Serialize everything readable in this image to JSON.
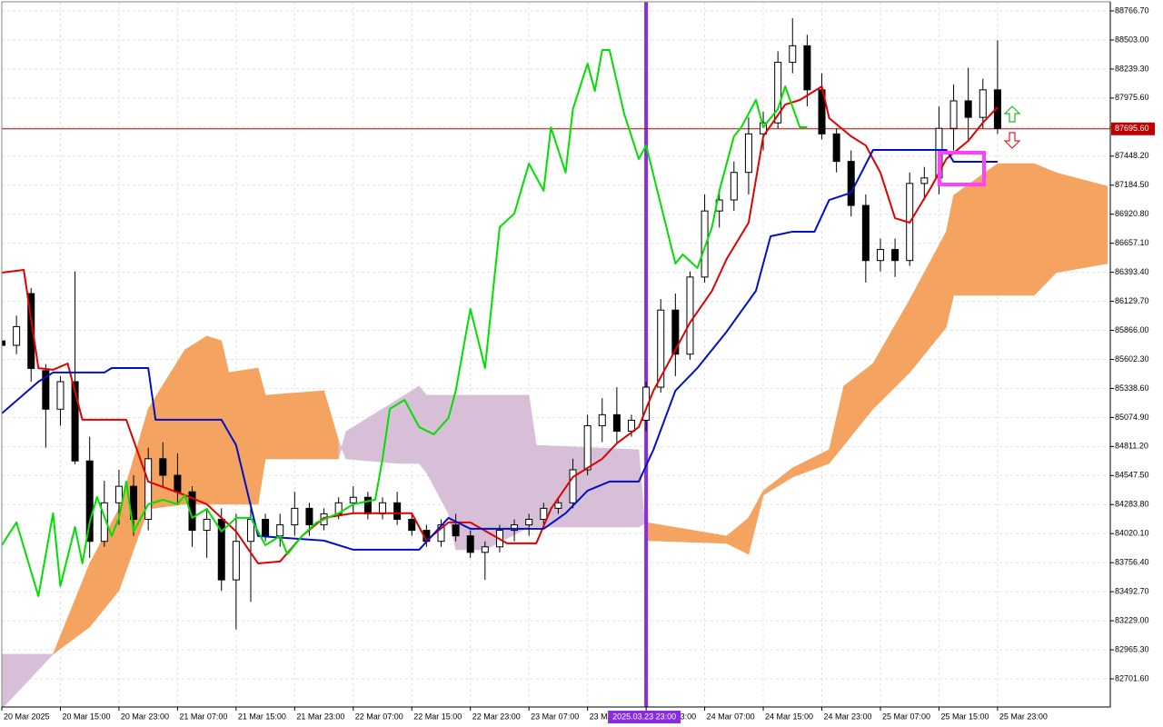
{
  "chart_data": {
    "type": "candlestick",
    "x": [
      0,
      2,
      4,
      6,
      8,
      10,
      12,
      14,
      16,
      18,
      20,
      22,
      24,
      26,
      28,
      30,
      32,
      34,
      36,
      38,
      40,
      42,
      44,
      46,
      48,
      50,
      52,
      54,
      56,
      58,
      60,
      62,
      64,
      66,
      68,
      70,
      72,
      74,
      76,
      78,
      80,
      82,
      84,
      86,
      88,
      90,
      92,
      94,
      96,
      98,
      100,
      102,
      104,
      106,
      108,
      110,
      112,
      114,
      116,
      118,
      120,
      122,
      124,
      126,
      128,
      130,
      132,
      134,
      136
    ],
    "ohlc": [
      [
        85770,
        85980,
        85610,
        85730
      ],
      [
        85730,
        86000,
        85650,
        85900
      ],
      [
        86200,
        86250,
        85400,
        85520
      ],
      [
        85500,
        85560,
        84800,
        85150
      ],
      [
        85150,
        85450,
        85000,
        85400
      ],
      [
        85400,
        86400,
        84650,
        84680
      ],
      [
        84680,
        84900,
        83800,
        83950
      ],
      [
        83950,
        84500,
        83900,
        84300
      ],
      [
        84300,
        84600,
        84100,
        84450
      ],
      [
        84450,
        84550,
        84000,
        84150
      ],
      [
        84150,
        84800,
        84050,
        84700
      ],
      [
        84700,
        84850,
        84450,
        84550
      ],
      [
        84550,
        84750,
        84300,
        84400
      ],
      [
        84400,
        84450,
        83900,
        84050
      ],
      [
        84050,
        84250,
        83800,
        84150
      ],
      [
        84150,
        84250,
        83500,
        83600
      ],
      [
        83600,
        84200,
        83150,
        83950
      ],
      [
        83950,
        84300,
        83400,
        84150
      ],
      [
        84150,
        84200,
        83950,
        84000
      ],
      [
        84000,
        84200,
        83900,
        84100
      ],
      [
        84100,
        84400,
        84000,
        84250
      ],
      [
        84250,
        84300,
        84000,
        84100
      ],
      [
        84100,
        84250,
        84050,
        84200
      ],
      [
        84200,
        84350,
        84150,
        84300
      ],
      [
        84300,
        84450,
        84200,
        84350
      ],
      [
        84350,
        84400,
        84150,
        84200
      ],
      [
        84200,
        84350,
        84150,
        84300
      ],
      [
        84300,
        84400,
        84100,
        84150
      ],
      [
        84150,
        84200,
        84000,
        84050
      ],
      [
        84050,
        84100,
        83900,
        83950
      ],
      [
        83950,
        84150,
        83900,
        84100
      ],
      [
        84100,
        84200,
        83950,
        84000
      ],
      [
        84000,
        84050,
        83800,
        83850
      ],
      [
        83850,
        83950,
        83600,
        83900
      ],
      [
        83900,
        84100,
        83850,
        84050
      ],
      [
        84050,
        84150,
        83950,
        84100
      ],
      [
        84100,
        84200,
        84000,
        84150
      ],
      [
        84150,
        84300,
        84100,
        84250
      ],
      [
        84250,
        84350,
        84200,
        84300
      ],
      [
        84300,
        84700,
        84250,
        84600
      ],
      [
        84600,
        85100,
        84550,
        85000
      ],
      [
        85000,
        85250,
        84850,
        85100
      ],
      [
        85100,
        85350,
        84850,
        84950
      ],
      [
        84950,
        85100,
        84900,
        85050
      ],
      [
        85050,
        85400,
        84950,
        85350
      ],
      [
        85350,
        86150,
        85300,
        86050
      ],
      [
        86050,
        86200,
        85450,
        85650
      ],
      [
        85650,
        86400,
        85600,
        86350
      ],
      [
        86350,
        87100,
        86300,
        86950
      ],
      [
        86950,
        87150,
        86800,
        87050
      ],
      [
        87050,
        87400,
        86950,
        87300
      ],
      [
        87300,
        87800,
        87100,
        87650
      ],
      [
        87650,
        87850,
        87500,
        87750
      ],
      [
        87750,
        88400,
        87700,
        88300
      ],
      [
        88300,
        88700,
        88200,
        88450
      ],
      [
        88450,
        88550,
        87900,
        88050
      ],
      [
        88050,
        88200,
        87600,
        87650
      ],
      [
        87650,
        87700,
        87300,
        87400
      ],
      [
        87400,
        87500,
        86900,
        87000
      ],
      [
        87000,
        87100,
        86300,
        86500
      ],
      [
        86500,
        86700,
        86400,
        86600
      ],
      [
        86600,
        86700,
        86350,
        86500
      ],
      [
        86500,
        87300,
        86450,
        87200
      ],
      [
        87200,
        87350,
        87050,
        87250
      ],
      [
        87250,
        87900,
        87100,
        87700
      ],
      [
        87700,
        88100,
        87500,
        87950
      ],
      [
        87950,
        88250,
        87600,
        87800
      ],
      [
        87800,
        88150,
        87700,
        88050
      ],
      [
        88050,
        88500,
        87650,
        87700
      ]
    ],
    "bull_color": "#ffffff",
    "bear_color": "#000000",
    "lines": [
      {
        "color": "#e00000",
        "x": [
          0,
          3,
          5,
          7,
          9,
          11,
          17,
          20,
          25,
          28,
          32,
          35,
          38,
          41,
          44,
          48,
          56,
          58,
          61,
          64,
          69,
          73,
          75,
          78,
          82,
          84,
          87,
          89,
          92,
          94,
          97,
          99,
          102,
          104,
          107,
          109,
          112,
          113,
          116,
          118,
          120,
          122,
          124,
          127,
          129,
          132,
          134,
          136
        ],
        "values": [
          86390,
          86415,
          85523,
          85508,
          85565,
          85054,
          85054,
          84493,
          84370,
          84287,
          84040,
          83750,
          83767,
          83998,
          84163,
          84205,
          84205,
          83957,
          84122,
          84122,
          83932,
          83932,
          84245,
          84534,
          84699,
          84840,
          84988,
          85318,
          85689,
          85937,
          86225,
          86514,
          86844,
          87628,
          87916,
          87958,
          88081,
          87793,
          87628,
          87545,
          87298,
          86885,
          86844,
          87174,
          87422,
          87587,
          87752,
          87892
        ]
      },
      {
        "color": "#0010c8",
        "x": [
          0,
          5,
          7,
          14,
          15,
          20,
          21,
          30,
          32,
          35,
          44,
          48,
          57,
          61,
          64,
          74,
          77,
          80,
          83,
          87,
          89,
          92,
          95,
          99,
          103,
          105,
          108,
          111,
          113,
          116,
          119,
          129,
          130,
          136
        ],
        "values": [
          85112,
          85400,
          85483,
          85483,
          85524,
          85524,
          85054,
          85054,
          84823,
          83998,
          83957,
          83874,
          83874,
          84163,
          84064,
          84064,
          84205,
          84410,
          84493,
          84493,
          84782,
          85318,
          85524,
          85854,
          86225,
          86720,
          86762,
          86762,
          87050,
          87116,
          87504,
          87504,
          87397,
          87397
        ]
      },
      {
        "color": "#00e000",
        "x": [
          0,
          2,
          5,
          7,
          8,
          10,
          11,
          12,
          13,
          15,
          16,
          17,
          18,
          20,
          22,
          24,
          25,
          26,
          28,
          30,
          32,
          34,
          36,
          38,
          39,
          41,
          43,
          46,
          48,
          51,
          52,
          53,
          55,
          57,
          59,
          61,
          62,
          64,
          66,
          68,
          70,
          72,
          74,
          75,
          77,
          78,
          80,
          81,
          82,
          83,
          85,
          87,
          88,
          92,
          93,
          95,
          97,
          98,
          100,
          101,
          103,
          104,
          106,
          107,
          109,
          110
        ],
        "values": [
          83915,
          84122,
          83453,
          84205,
          83544,
          84080,
          83750,
          84122,
          84353,
          83998,
          84163,
          84493,
          84040,
          84287,
          84328,
          84287,
          84370,
          84163,
          84245,
          84040,
          84163,
          84163,
          83915,
          83998,
          83833,
          83998,
          84122,
          84205,
          84287,
          84328,
          84699,
          85153,
          85235,
          84988,
          84922,
          85070,
          85318,
          86060,
          85524,
          86803,
          86927,
          87380,
          87133,
          87710,
          87298,
          87875,
          88288,
          88040,
          88412,
          88412,
          87834,
          87422,
          87545,
          86473,
          86555,
          86432,
          86803,
          87133,
          87628,
          87710,
          87958,
          87710,
          87875,
          88081,
          87710,
          87710
        ]
      }
    ],
    "cloud": {
      "x": [
        0,
        7,
        12,
        16,
        20,
        25,
        28,
        30,
        31,
        35,
        36,
        44,
        46,
        47,
        54,
        57,
        58,
        61,
        62,
        66,
        72,
        73,
        87,
        88,
        99,
        102,
        104,
        108,
        113,
        115,
        119,
        124,
        129,
        130,
        136,
        141,
        144,
        151
      ],
      "span_a": [
        82430,
        82925,
        83750,
        84245,
        85153,
        85689,
        85813,
        85772,
        85483,
        85524,
        85277,
        85318,
        84864,
        84699,
        84658,
        84658,
        84575,
        84204,
        83874,
        83874,
        84080,
        84080,
        84080,
        84122,
        83998,
        84163,
        84410,
        84617,
        84782,
        85359,
        85565,
        86143,
        86762,
        87092,
        87380,
        87380,
        87298,
        87174
      ],
      "span_b": [
        82925,
        82925,
        83173,
        83503,
        84245,
        84287,
        84287,
        84287,
        84287,
        84287,
        84699,
        84699,
        84699,
        84947,
        85235,
        85359,
        85277,
        85277,
        85277,
        85277,
        85277,
        84823,
        84782,
        83957,
        83932,
        83833,
        84370,
        84534,
        84658,
        84823,
        85153,
        85483,
        85895,
        86184,
        86184,
        86184,
        86390,
        86473
      ],
      "up_color": "#f4a460",
      "down_color": "#d8bfd8"
    },
    "xlim": [
      0,
      151.4
    ],
    "ylim": [
      82445.8,
      88849.2
    ],
    "xticks": [
      {
        "value": 0,
        "label": "20 Mar 2025"
      },
      {
        "value": 8,
        "label": "20 Mar 15:00"
      },
      {
        "value": 16,
        "label": "20 Mar 23:00"
      },
      {
        "value": 24,
        "label": "21 Mar 07:00"
      },
      {
        "value": 32,
        "label": "21 Mar 15:00"
      },
      {
        "value": 40,
        "label": "21 Mar 23:00"
      },
      {
        "value": 48,
        "label": "22 Mar 07:00"
      },
      {
        "value": 56,
        "label": "22 Mar 15:00"
      },
      {
        "value": 64,
        "label": "22 Mar 23:00"
      },
      {
        "value": 72,
        "label": "23 Mar 07:00"
      },
      {
        "value": 80,
        "label": "23 Mar 15:00"
      },
      {
        "value": 88,
        "label": "23 Mar 23:00"
      },
      {
        "value": 96,
        "label": "24 Mar 07:00"
      },
      {
        "value": 104,
        "label": "24 Mar 15:00"
      },
      {
        "value": 112,
        "label": "24 Mar 23:00"
      },
      {
        "value": 120,
        "label": "25 Mar 07:00"
      },
      {
        "value": 128,
        "label": "25 Mar 15:00"
      },
      {
        "value": 136,
        "label": "25 Mar 23:00"
      }
    ],
    "yticks": [
      {
        "value": 88766.7,
        "label": "88766.70"
      },
      {
        "value": 88503,
        "label": "88503.00"
      },
      {
        "value": 88239.3,
        "label": "88239.30"
      },
      {
        "value": 87975.6,
        "label": "87975.60"
      },
      {
        "value": 87711.9,
        "label": "87711.90"
      },
      {
        "value": 87448.2,
        "label": "87448.20"
      },
      {
        "value": 87184.5,
        "label": "87184.50"
      },
      {
        "value": 86920.8,
        "label": "86920.80"
      },
      {
        "value": 86657.1,
        "label": "86657.10"
      },
      {
        "value": 86393.4,
        "label": "86393.40"
      },
      {
        "value": 86129.7,
        "label": "86129.70"
      },
      {
        "value": 85866,
        "label": "85866.00"
      },
      {
        "value": 85602.3,
        "label": "85602.30"
      },
      {
        "value": 85338.6,
        "label": "85338.60"
      },
      {
        "value": 85074.9,
        "label": "85074.90"
      },
      {
        "value": 84811.2,
        "label": "84811.20"
      },
      {
        "value": 84547.5,
        "label": "84547.50"
      },
      {
        "value": 84283.8,
        "label": "84283.80"
      },
      {
        "value": 84020.1,
        "label": "84020.10"
      },
      {
        "value": 83756.4,
        "label": "83756.40"
      },
      {
        "value": 83492.7,
        "label": "83492.70"
      },
      {
        "value": 83229,
        "label": "83229.00"
      },
      {
        "value": 82965.3,
        "label": "82965.30"
      },
      {
        "value": 82701.6,
        "label": "82701.60"
      }
    ],
    "grid": true,
    "current_price": {
      "value": 87695.6,
      "label": "87695.60",
      "color": "#c00000"
    },
    "highlight_time": {
      "value": 88,
      "label": "2025.03.23 23:00",
      "color": "#8a2be2"
    }
  }
}
